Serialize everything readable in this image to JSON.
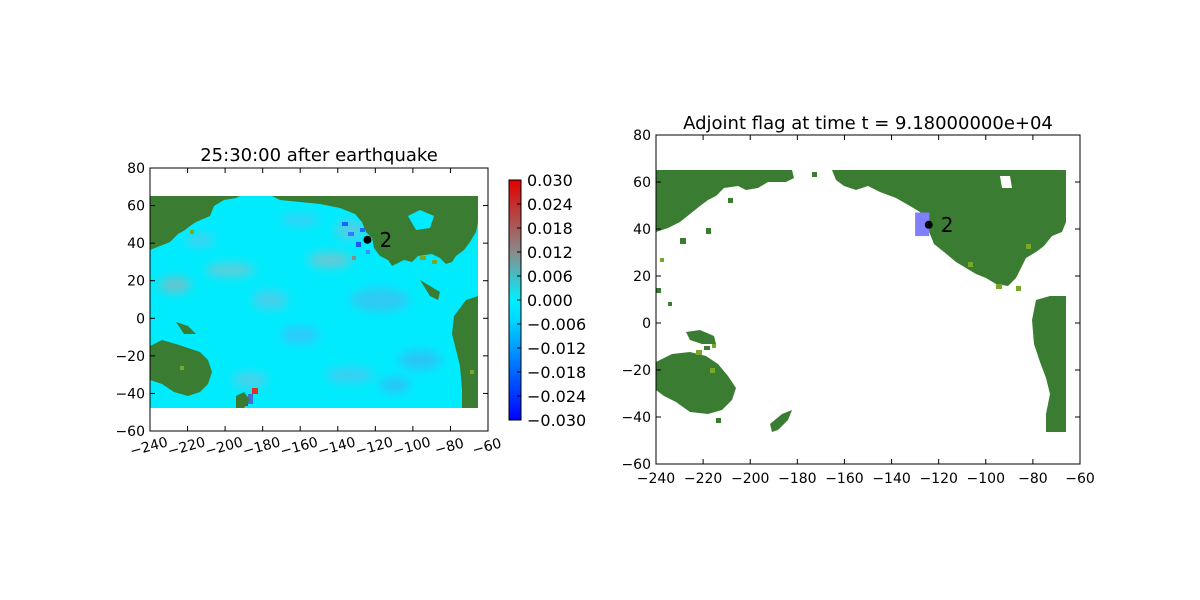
{
  "chart_data": [
    {
      "type": "heatmap",
      "title": "25:30:00 after earthquake",
      "xlim": [
        -240,
        -60
      ],
      "ylim": [
        -60,
        80
      ],
      "xticks": [
        "−240",
        "−220",
        "−200",
        "−180",
        "−160",
        "−140",
        "−120",
        "−100",
        "−80",
        "−60"
      ],
      "xtick_values": [
        -240,
        -220,
        -200,
        -180,
        -160,
        -140,
        -120,
        -100,
        -80,
        -60
      ],
      "yticks": [
        "−60",
        "−40",
        "−20",
        "0",
        "20",
        "40",
        "60",
        "80"
      ],
      "ytick_values": [
        -60,
        -40,
        -20,
        0,
        20,
        40,
        60,
        80
      ],
      "xtick_rotation": "rotated",
      "data_extent": {
        "x": [
          -240,
          -65
        ],
        "y": [
          -48,
          65
        ]
      },
      "colormap": [
        "#0000ff",
        "#00e5ff",
        "#8c8c8c",
        "#e30000"
      ],
      "land_color": "#3a7d32",
      "colorbar": {
        "range": [
          -0.03,
          0.03
        ],
        "ticks": [
          "−0.030",
          "−0.024",
          "−0.018",
          "−0.012",
          "−0.006",
          "0.000",
          "0.006",
          "0.012",
          "0.018",
          "0.024",
          "0.030"
        ],
        "tick_values": [
          -0.03,
          -0.024,
          -0.018,
          -0.012,
          -0.006,
          0.0,
          0.006,
          0.012,
          0.018,
          0.024,
          0.03
        ]
      },
      "gauge": {
        "label": "2",
        "x": -124.2,
        "y": 41.8
      }
    },
    {
      "type": "heatmap",
      "title": "Adjoint flag at time t = 9.18000000e+04",
      "xlim": [
        -240,
        -60
      ],
      "ylim": [
        -60,
        80
      ],
      "xticks": [
        "−240",
        "−220",
        "−200",
        "−180",
        "−160",
        "−140",
        "−120",
        "−100",
        "−80",
        "−60"
      ],
      "xtick_values": [
        -240,
        -220,
        -200,
        -180,
        -160,
        -140,
        -120,
        -100,
        -80,
        -60
      ],
      "yticks": [
        "−60",
        "−40",
        "−20",
        "0",
        "20",
        "40",
        "60",
        "80"
      ],
      "ytick_values": [
        -60,
        -40,
        -20,
        0,
        20,
        40,
        60,
        80
      ],
      "land_color": "#3a7d32",
      "flag_color": "#8080ff",
      "flag_region": {
        "x": [
          -130,
          -124
        ],
        "y": [
          37,
          47
        ]
      },
      "gauge": {
        "label": "2",
        "x": -124.2,
        "y": 41.8
      }
    }
  ]
}
